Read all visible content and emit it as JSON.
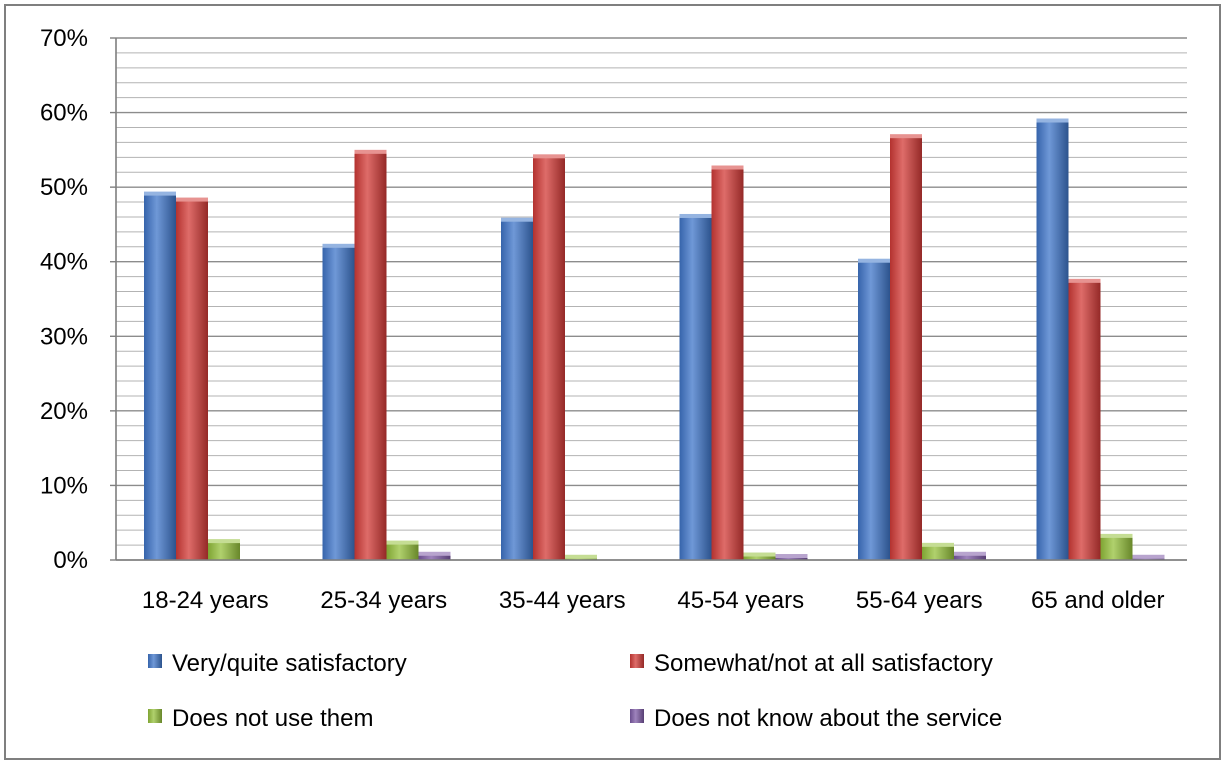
{
  "chart_data": {
    "type": "bar",
    "categories": [
      "18-24 years",
      "25-34 years",
      "35-44 years",
      "45-54 years",
      "55-64 years",
      "65 and older"
    ],
    "series": [
      {
        "name": "Very/quite satisfactory",
        "color": "#3f76c9",
        "values": [
          49,
          42,
          45.5,
          46,
          40,
          58.8
        ]
      },
      {
        "name": "Somewhat/not at all satisfactory",
        "color": "#d33b37",
        "values": [
          48.2,
          54.6,
          54,
          52.5,
          56.7,
          37.3
        ]
      },
      {
        "name": "Does not use them",
        "color": "#95c13c",
        "values": [
          2.4,
          2.2,
          0.3,
          0.6,
          1.9,
          3.1
        ]
      },
      {
        "name": "Does not know about the service",
        "color": "#7d5aa6",
        "values": [
          0,
          0.7,
          0,
          0.4,
          0.7,
          0.3
        ]
      }
    ],
    "y_ticks": [
      "0%",
      "10%",
      "20%",
      "30%",
      "40%",
      "50%",
      "60%",
      "70%"
    ],
    "ylim": [
      0,
      70
    ],
    "minor_gridline_step": 2,
    "grid": true,
    "legend_position": "bottom",
    "title": "",
    "xlabel": "",
    "ylabel": ""
  }
}
